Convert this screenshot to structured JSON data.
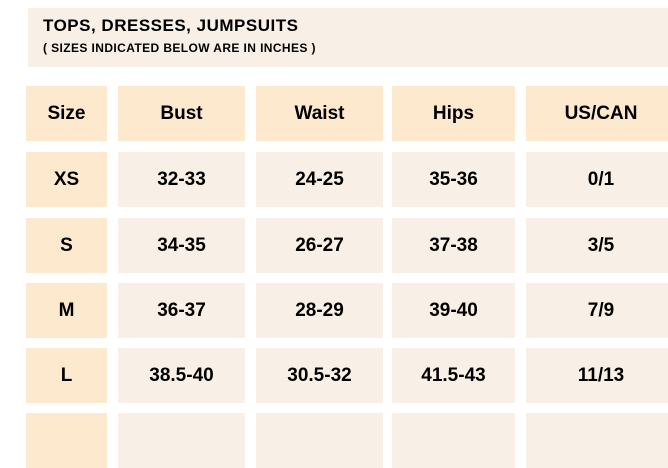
{
  "header": {
    "title": "TOPS, DRESSES, JUMPSUITS",
    "subtitle": "( SIZES INDICATED BELOW ARE IN INCHES )"
  },
  "table": {
    "columns": [
      "Size",
      "Bust",
      "Waist",
      "Hips",
      "US/CAN"
    ],
    "rows": [
      [
        "XS",
        "32-33",
        "24-25",
        "35-36",
        "0/1"
      ],
      [
        "S",
        "34-35",
        "26-27",
        "37-38",
        "3/5"
      ],
      [
        "M",
        "36-37",
        "28-29",
        "39-40",
        "7/9"
      ],
      [
        "L",
        "38.5-40",
        "30.5-32",
        "41.5-43",
        "11/13"
      ],
      [
        "",
        "",
        "",
        "",
        ""
      ]
    ]
  },
  "colors": {
    "header_cell": "#fde9cd",
    "body_cell": "#f8f0e6",
    "banner": "#f8f0e6"
  }
}
